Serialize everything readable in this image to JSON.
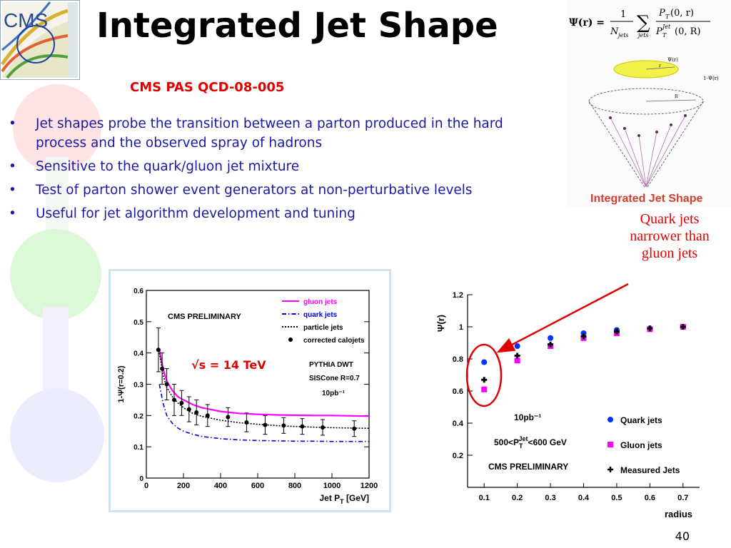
{
  "slide": {
    "title": "Integrated Jet Shape",
    "subtitle": "CMS PAS QCD-08-005",
    "bullets": [
      "Jet shapes probe the transition between a parton produced in the hard process and the observed spray of hadrons",
      "Sensitive to the quark/gluon jet mixture",
      "Test of parton shower event generators at non-perturbative levels",
      "Useful for jet algorithm development and tuning"
    ],
    "bullet_symbol": "•",
    "annotation": "Quark jets narrower than gluon jets",
    "energy_label": "√s = 14 TeV",
    "page_number": "40",
    "logo_text": "CMS",
    "colors": {
      "title": "#000000",
      "subtitle": "#e00000",
      "bullets": "#1a1aa6",
      "annotation": "#e00000",
      "arrow": "#e00000"
    }
  },
  "diagram": {
    "formula_lhs": "Ψ(r) =",
    "formula_frac": "1",
    "formula_den": "N",
    "formula_den_sub": "jets",
    "formula_sum_sub": "jets",
    "num": "P",
    "num_sub": "T",
    "num_arg": "(0, r)",
    "den": "P",
    "den_sub": "T",
    "den_sup": "Jet",
    "den_arg": "(0, R)",
    "psi_label": "Ψ(r)",
    "one_minus_label": "1-Ψ(r)",
    "r_label": "r",
    "R_label": "R",
    "caption": "Integrated Jet Shape"
  },
  "chart_data": [
    {
      "type": "line",
      "xlabel": "Jet P",
      "xlabel_sub": "T",
      "xlabel_unit": "[GeV]",
      "ylabel": "1-Ψ(r=0.2)",
      "xlim": [
        0,
        1200
      ],
      "ylim": [
        0,
        0.6
      ],
      "xticks": [
        0,
        200,
        400,
        600,
        800,
        1000,
        1200
      ],
      "yticks": [
        0,
        0.1,
        0.2,
        0.3,
        0.4,
        0.5,
        0.6
      ],
      "ytick_labels": [
        "0",
        "0.1",
        "0.2",
        "0.3",
        "0.4",
        "0.5",
        "0.6"
      ],
      "annotations": [
        "CMS PRELIMINARY",
        "PYTHIA DWT",
        "SISCone R=0.7",
        "10pb⁻¹"
      ],
      "series": [
        {
          "name": "gluon jets",
          "color": "#ff00ff",
          "style": "solid",
          "x": [
            70,
            90,
            110,
            140,
            170,
            200,
            250,
            300,
            400,
            500,
            600,
            700,
            800,
            900,
            1000,
            1100,
            1200
          ],
          "y": [
            0.41,
            0.35,
            0.31,
            0.28,
            0.26,
            0.25,
            0.235,
            0.225,
            0.213,
            0.207,
            0.204,
            0.202,
            0.201,
            0.2,
            0.2,
            0.199,
            0.198
          ]
        },
        {
          "name": "quark jets",
          "color": "#0000dd",
          "style": "dashdot",
          "x": [
            70,
            90,
            110,
            140,
            170,
            200,
            250,
            300,
            400,
            500,
            600,
            700,
            800,
            900,
            1000,
            1100,
            1200
          ],
          "y": [
            0.3,
            0.24,
            0.2,
            0.175,
            0.16,
            0.15,
            0.14,
            0.133,
            0.126,
            0.122,
            0.12,
            0.119,
            0.118,
            0.118,
            0.117,
            0.117,
            0.117
          ]
        },
        {
          "name": "particle jets",
          "color": "#000000",
          "style": "dotted",
          "x": [
            70,
            90,
            110,
            140,
            170,
            200,
            250,
            300,
            400,
            500,
            600,
            700,
            800,
            900,
            1000,
            1100,
            1200
          ],
          "y": [
            0.4,
            0.33,
            0.29,
            0.26,
            0.24,
            0.225,
            0.207,
            0.197,
            0.185,
            0.177,
            0.172,
            0.168,
            0.165,
            0.163,
            0.161,
            0.16,
            0.159
          ]
        },
        {
          "name": "corrected calojets",
          "color": "#000000",
          "style": "markers",
          "x": [
            65,
            85,
            110,
            150,
            190,
            230,
            270,
            330,
            440,
            540,
            640,
            740,
            840,
            950,
            1120
          ],
          "y": [
            0.41,
            0.35,
            0.3,
            0.25,
            0.24,
            0.22,
            0.21,
            0.2,
            0.195,
            0.178,
            0.17,
            0.168,
            0.165,
            0.162,
            0.158
          ],
          "err": [
            0.07,
            0.05,
            0.05,
            0.05,
            0.04,
            0.04,
            0.04,
            0.035,
            0.03,
            0.03,
            0.03,
            0.025,
            0.025,
            0.025,
            0.025
          ]
        }
      ]
    },
    {
      "type": "scatter",
      "xlabel": "radius",
      "ylabel": "Ψ(r)",
      "xlim": [
        0.05,
        0.75
      ],
      "ylim": [
        0.0,
        1.2
      ],
      "xticks": [
        0.1,
        0.2,
        0.3,
        0.4,
        0.5,
        0.6,
        0.7
      ],
      "yticks": [
        0.2,
        0.4,
        0.6,
        0.8,
        1,
        1.2
      ],
      "ytick_labels": [
        "0.2",
        "0.4",
        "0.6",
        "0.8",
        "1",
        "1.2"
      ],
      "annotations": [
        "10pb⁻¹",
        "500<P",
        "T",
        "Jet",
        "<600 GeV",
        "CMS PRELIMINARY"
      ],
      "series": [
        {
          "name": "Quark jets",
          "color": "#0033ff",
          "marker": "circle",
          "x": [
            0.1,
            0.2,
            0.3,
            0.4,
            0.5,
            0.6,
            0.7
          ],
          "y": [
            0.78,
            0.88,
            0.93,
            0.96,
            0.98,
            0.99,
            1.0
          ]
        },
        {
          "name": "Gluon jets",
          "color": "#ff00ff",
          "marker": "square",
          "x": [
            0.1,
            0.2,
            0.3,
            0.4,
            0.5,
            0.6,
            0.7
          ],
          "y": [
            0.61,
            0.79,
            0.88,
            0.93,
            0.96,
            0.985,
            1.0
          ]
        },
        {
          "name": "Measured Jets",
          "color": "#000000",
          "marker": "open-cross",
          "x": [
            0.1,
            0.2,
            0.3,
            0.4,
            0.5,
            0.6,
            0.7
          ],
          "y": [
            0.67,
            0.82,
            0.89,
            0.94,
            0.97,
            0.99,
            1.0
          ]
        }
      ]
    }
  ]
}
